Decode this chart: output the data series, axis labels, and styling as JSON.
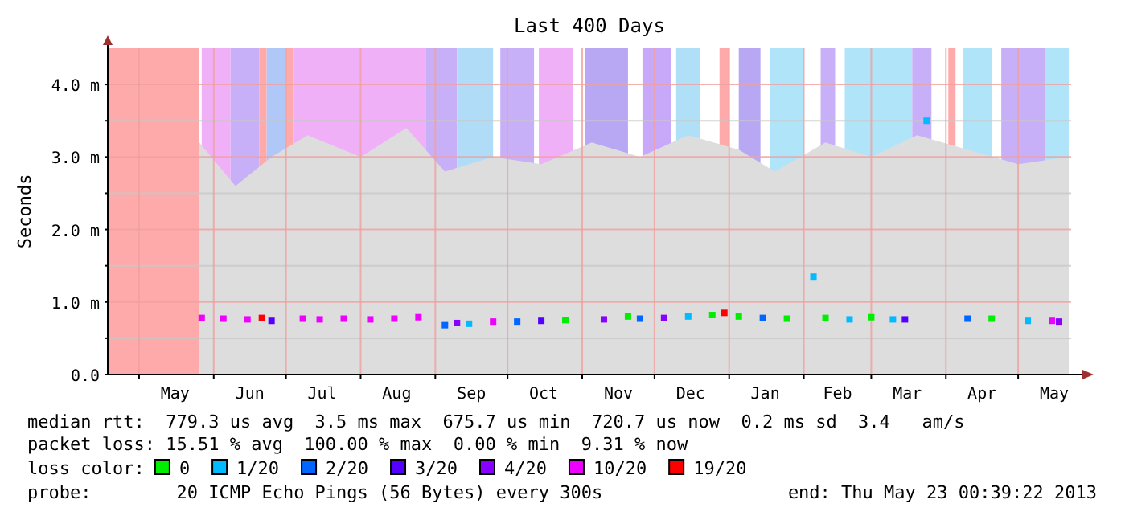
{
  "chart_data": {
    "type": "scatter",
    "title": "Last 400 Days",
    "ylabel": "Seconds",
    "legend_title": "loss color:",
    "legend": "bottom",
    "grid": true,
    "xlim": [
      "2012-04-18",
      "2013-05-23"
    ],
    "xticks": [
      {
        "value": "2012-05-01",
        "label": null
      },
      {
        "value": "2012-05-16",
        "label": "May"
      },
      {
        "value": "2012-06-01",
        "label": null
      },
      {
        "value": "2012-06-16",
        "label": "Jun"
      },
      {
        "value": "2012-07-01",
        "label": null
      },
      {
        "value": "2012-07-16",
        "label": "Jul"
      },
      {
        "value": "2012-08-01",
        "label": null
      },
      {
        "value": "2012-08-16",
        "label": "Aug"
      },
      {
        "value": "2012-09-01",
        "label": null
      },
      {
        "value": "2012-09-16",
        "label": "Sep"
      },
      {
        "value": "2012-10-01",
        "label": null
      },
      {
        "value": "2012-10-16",
        "label": "Oct"
      },
      {
        "value": "2012-11-01",
        "label": null
      },
      {
        "value": "2012-11-16",
        "label": "Nov"
      },
      {
        "value": "2012-12-01",
        "label": null
      },
      {
        "value": "2012-12-16",
        "label": "Dec"
      },
      {
        "value": "2013-01-01",
        "label": null
      },
      {
        "value": "2013-01-16",
        "label": "Jan"
      },
      {
        "value": "2013-02-01",
        "label": null
      },
      {
        "value": "2013-02-15",
        "label": "Feb"
      },
      {
        "value": "2013-03-01",
        "label": null
      },
      {
        "value": "2013-03-16",
        "label": "Mar"
      },
      {
        "value": "2013-04-01",
        "label": null
      },
      {
        "value": "2013-04-16",
        "label": "Apr"
      },
      {
        "value": "2013-05-01",
        "label": null
      },
      {
        "value": "2013-05-16",
        "label": "May"
      }
    ],
    "ylim": [
      0,
      4.5
    ],
    "yticks": [
      {
        "value": 0,
        "label": "0.0"
      },
      {
        "value": 0.5,
        "label": null
      },
      {
        "value": 1,
        "label": "1.0 m"
      },
      {
        "value": 1.5,
        "label": null
      },
      {
        "value": 2,
        "label": "2.0 m"
      },
      {
        "value": 2.5,
        "label": null
      },
      {
        "value": 3,
        "label": "3.0 m"
      },
      {
        "value": 3.5,
        "label": null
      },
      {
        "value": 4,
        "label": "4.0 m"
      }
    ],
    "bands": [
      {
        "axis": "x",
        "from": "2012-04-18",
        "to": "2012-05-26",
        "color": "#ffaaaa"
      },
      {
        "axis": "x",
        "from": "2012-05-27",
        "to": "2012-06-08",
        "color": "#f0b0f8"
      },
      {
        "axis": "x",
        "from": "2012-06-08",
        "to": "2012-06-20",
        "color": "#c8b0f8"
      },
      {
        "axis": "x",
        "from": "2012-06-20",
        "to": "2012-06-23",
        "color": "#ffaaaa"
      },
      {
        "axis": "x",
        "from": "2012-06-23",
        "to": "2012-07-01",
        "color": "#b0c8f8"
      },
      {
        "axis": "x",
        "from": "2012-07-01",
        "to": "2012-07-04",
        "color": "#ffaaaa"
      },
      {
        "axis": "x",
        "from": "2012-07-04",
        "to": "2012-08-28",
        "color": "#f0b0f8"
      },
      {
        "axis": "x",
        "from": "2012-08-28",
        "to": "2012-09-10",
        "color": "#c8b0f8"
      },
      {
        "axis": "x",
        "from": "2012-09-10",
        "to": "2012-09-25",
        "color": "#b0dcf8"
      },
      {
        "axis": "x",
        "from": "2012-09-28",
        "to": "2012-10-12",
        "color": "#c8b0f8"
      },
      {
        "axis": "x",
        "from": "2012-10-14",
        "to": "2012-10-28",
        "color": "#f0b0f8"
      },
      {
        "axis": "x",
        "from": "2012-11-02",
        "to": "2012-11-20",
        "color": "#b8a8f4"
      },
      {
        "axis": "x",
        "from": "2012-11-26",
        "to": "2012-12-08",
        "color": "#c8a8f8"
      },
      {
        "axis": "x",
        "from": "2012-12-10",
        "to": "2012-12-20",
        "color": "#b0e0f8"
      },
      {
        "axis": "x",
        "from": "2012-12-28",
        "to": "2013-01-01",
        "color": "#ffaaaa"
      },
      {
        "axis": "x",
        "from": "2013-01-05",
        "to": "2013-01-14",
        "color": "#b8a8f4"
      },
      {
        "axis": "x",
        "from": "2013-01-18",
        "to": "2013-02-01",
        "color": "#b0e4f8"
      },
      {
        "axis": "x",
        "from": "2013-02-08",
        "to": "2013-02-14",
        "color": "#c8b0f8"
      },
      {
        "axis": "x",
        "from": "2013-02-18",
        "to": "2013-03-18",
        "color": "#b0e4f8"
      },
      {
        "axis": "x",
        "from": "2013-03-18",
        "to": "2013-03-26",
        "color": "#c8b0f8"
      },
      {
        "axis": "x",
        "from": "2013-04-02",
        "to": "2013-04-05",
        "color": "#ffaaaa"
      },
      {
        "axis": "x",
        "from": "2013-04-08",
        "to": "2013-04-20",
        "color": "#b0e4f8"
      },
      {
        "axis": "x",
        "from": "2013-04-24",
        "to": "2013-05-12",
        "color": "#c8b0f8"
      },
      {
        "axis": "x",
        "from": "2013-05-12",
        "to": "2013-05-22",
        "color": "#b0e4f8"
      }
    ],
    "series": [
      {
        "type": "area",
        "color": "#dddddd",
        "x": [
          "2012-05-26",
          "2012-06-10",
          "2012-06-25",
          "2012-07-10",
          "2012-08-01",
          "2012-08-20",
          "2012-09-05",
          "2012-09-25",
          "2012-10-15",
          "2012-11-05",
          "2012-11-25",
          "2012-12-15",
          "2013-01-05",
          "2013-01-20",
          "2013-02-10",
          "2013-03-01",
          "2013-03-20",
          "2013-04-10",
          "2013-05-01",
          "2013-05-22"
        ],
        "values": [
          3.2,
          2.6,
          3.0,
          3.3,
          3.0,
          3.4,
          2.8,
          3.0,
          2.9,
          3.2,
          3.0,
          3.3,
          3.1,
          2.8,
          3.2,
          3.0,
          3.3,
          3.1,
          2.9,
          3.0
        ]
      },
      {
        "name": "0",
        "color": "#00ee00",
        "marker": "square",
        "x": [
          "2012-10-25",
          "2012-11-20",
          "2012-12-25",
          "2013-01-05",
          "2013-01-25",
          "2013-02-10",
          "2013-03-01",
          "2013-04-20"
        ],
        "values": [
          0.75,
          0.8,
          0.82,
          0.8,
          0.77,
          0.78,
          0.79,
          0.77
        ]
      },
      {
        "name": "1/20",
        "color": "#00bbff",
        "marker": "square",
        "x": [
          "2012-09-15",
          "2012-12-15",
          "2013-02-05",
          "2013-02-20",
          "2013-03-10",
          "2013-03-24",
          "2013-05-05"
        ],
        "values": [
          0.7,
          0.8,
          1.35,
          0.76,
          0.76,
          3.5,
          0.74
        ]
      },
      {
        "name": "2/20",
        "color": "#0066ff",
        "marker": "square",
        "x": [
          "2012-09-05",
          "2012-10-05",
          "2012-11-25",
          "2013-01-15",
          "2013-04-10"
        ],
        "values": [
          0.68,
          0.73,
          0.77,
          0.78,
          0.77
        ]
      },
      {
        "name": "3/20",
        "color": "#5500ff",
        "marker": "square",
        "x": [
          "2012-06-25",
          "2012-10-15",
          "2013-03-15"
        ],
        "values": [
          0.74,
          0.74,
          0.76
        ]
      },
      {
        "name": "4/20",
        "color": "#8800ff",
        "marker": "square",
        "x": [
          "2012-09-10",
          "2012-11-10",
          "2012-12-05",
          "2013-05-18"
        ],
        "values": [
          0.71,
          0.76,
          0.78,
          0.73
        ]
      },
      {
        "name": "10/20",
        "color": "#ee00ff",
        "marker": "square",
        "x": [
          "2012-05-27",
          "2012-06-05",
          "2012-06-15",
          "2012-07-08",
          "2012-07-15",
          "2012-07-25",
          "2012-08-05",
          "2012-08-15",
          "2012-08-25",
          "2012-09-25",
          "2013-05-15"
        ],
        "values": [
          0.78,
          0.77,
          0.76,
          0.77,
          0.76,
          0.77,
          0.76,
          0.77,
          0.79,
          0.73,
          0.74
        ]
      },
      {
        "name": "19/20",
        "color": "#ff0000",
        "marker": "square",
        "x": [
          "2012-06-21",
          "2012-12-30"
        ],
        "values": [
          0.78,
          0.85
        ]
      }
    ],
    "annotations": [
      "median rtt:  779.3 us avg  3.5 ms max  675.7 us min  720.7 us now  0.2 ms sd  3.4   am/s",
      "packet loss: 15.51 % avg  100.00 % max  0.00 % min  9.31 % now",
      "probe:        20 ICMP Echo Pings (56 Bytes) every 300s",
      "end: Thu May 23 00:39:22 2013"
    ]
  }
}
